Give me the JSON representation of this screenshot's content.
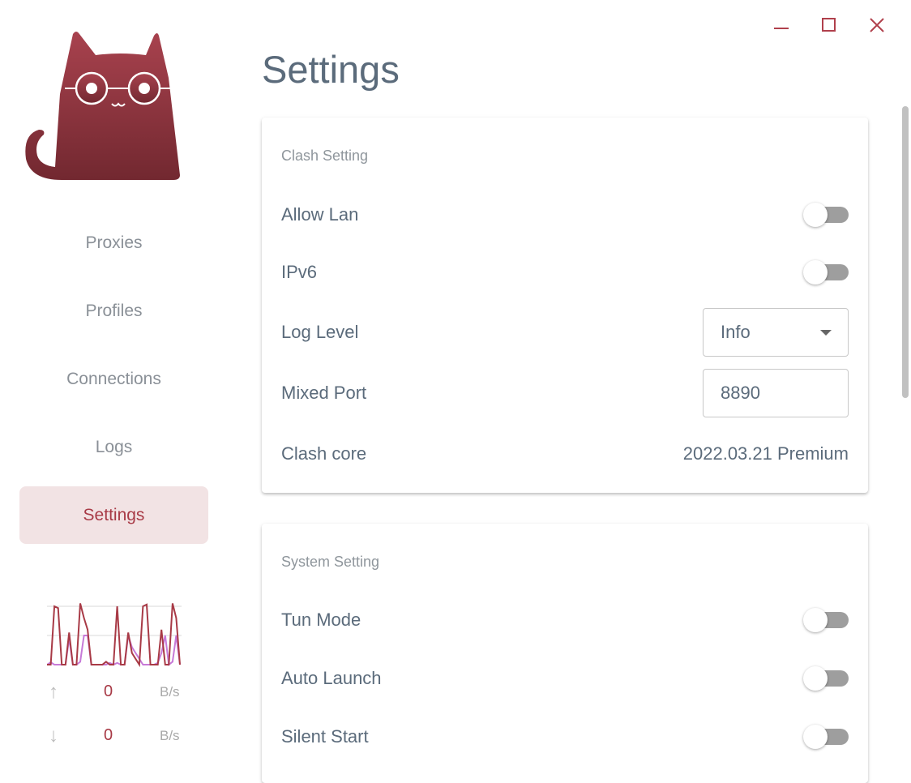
{
  "window": {
    "minimize_icon": "minimize-icon",
    "maximize_icon": "maximize-icon",
    "close_icon": "close-icon"
  },
  "sidebar": {
    "logo": "clash-cat-logo",
    "items": [
      {
        "label": "Proxies"
      },
      {
        "label": "Profiles"
      },
      {
        "label": "Connections"
      },
      {
        "label": "Logs"
      },
      {
        "label": "Settings",
        "active": true
      }
    ],
    "traffic": {
      "upload": {
        "value": "0",
        "unit": "B/s",
        "icon": "arrow-up-icon"
      },
      "download": {
        "value": "0",
        "unit": "B/s",
        "icon": "arrow-down-icon"
      },
      "upload_series": [
        0,
        0,
        1,
        0.97,
        0,
        0,
        0.55,
        0,
        0,
        1.05,
        0.8,
        0.6,
        0,
        0,
        0,
        0,
        0.05,
        0,
        0,
        1,
        0,
        0,
        0.55,
        0.2,
        0.1,
        0,
        1,
        1.03,
        0,
        0,
        0,
        0.6,
        0,
        0,
        1.05,
        0.8,
        0
      ],
      "download_series": [
        0,
        0.04,
        0,
        0,
        0,
        0,
        0.45,
        0,
        0,
        0.05,
        0.5,
        0.5,
        0,
        0,
        0,
        0,
        0,
        0.03,
        0,
        0.03,
        0,
        0,
        0.5,
        0.3,
        0.2,
        0.1,
        0,
        0,
        0,
        0,
        0.03,
        0.2,
        0.5,
        0,
        0.05,
        0.5,
        0
      ]
    },
    "colors": {
      "accent": "#a83a46",
      "active_bg": "#f2e3e4",
      "download_line": "#c77ad8"
    }
  },
  "page": {
    "title": "Settings"
  },
  "clash_setting": {
    "header": "Clash Setting",
    "allow_lan": {
      "label": "Allow Lan",
      "on": false
    },
    "ipv6": {
      "label": "IPv6",
      "on": false
    },
    "log_level": {
      "label": "Log Level",
      "value": "Info"
    },
    "mixed_port": {
      "label": "Mixed Port",
      "value": "8890"
    },
    "clash_core": {
      "label": "Clash core",
      "value": "2022.03.21 Premium"
    }
  },
  "system_setting": {
    "header": "System Setting",
    "tun_mode": {
      "label": "Tun Mode",
      "on": false
    },
    "auto_launch": {
      "label": "Auto Launch",
      "on": false
    },
    "silent_start": {
      "label": "Silent Start",
      "on": false
    }
  }
}
